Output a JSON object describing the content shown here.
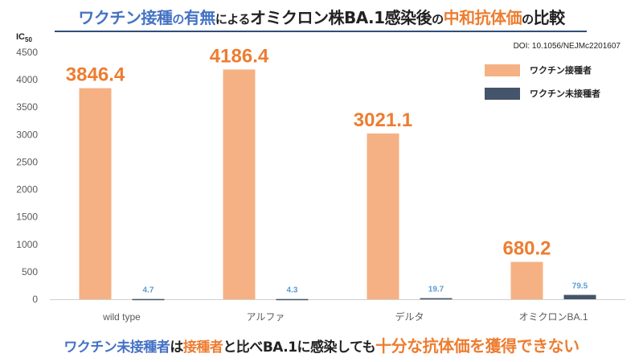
{
  "title": {
    "part1": "ワクチン接種",
    "part2": "の",
    "part3": "有無",
    "part4": "による",
    "part5": "オミクロン株BA.1感染後",
    "part6": "の",
    "part7": "中和抗体価",
    "part8": "の",
    "part9": "比較"
  },
  "doi": "DOI: 10.1056/NEJMc2201607",
  "bottom_text": {
    "part1": "ワクチン未接種者",
    "part2": "は",
    "part3": "接種者",
    "part4": "と比べ",
    "part5": "BA.1",
    "part6": "に",
    "part7": "感染",
    "part8": "しても",
    "part9": "十分な抗体価を獲得できない"
  },
  "colors": {
    "vaccinated": "#f5b183",
    "unvaccinated": "#44546a",
    "value_orange": "#ed7d31",
    "value_blue": "#5b9bd5",
    "title_blue": "#4472c4",
    "title_dark": "#222222"
  },
  "chart_data": {
    "type": "bar",
    "y_axis_title": "IC50",
    "categories": [
      "wild type",
      "アルファ",
      "デルタ",
      "オミクロンBA.1"
    ],
    "series": [
      {
        "name": "ワクチン接種者",
        "values": [
          3846.4,
          4186.4,
          3021.1,
          680.2
        ],
        "labels": [
          "3846.4",
          "4186.4",
          "3021.1",
          "680.2"
        ]
      },
      {
        "name": "ワクチン未接種者",
        "values": [
          4.7,
          4.3,
          19.7,
          79.5
        ],
        "labels": [
          "4.7",
          "4.3",
          "19.7",
          "79.5"
        ]
      }
    ],
    "ylim": [
      0,
      4500
    ],
    "yticks": [
      0,
      500,
      1000,
      1500,
      2000,
      2500,
      3000,
      3500,
      4000,
      4500
    ],
    "grid": false,
    "legend_position": "top-right"
  }
}
